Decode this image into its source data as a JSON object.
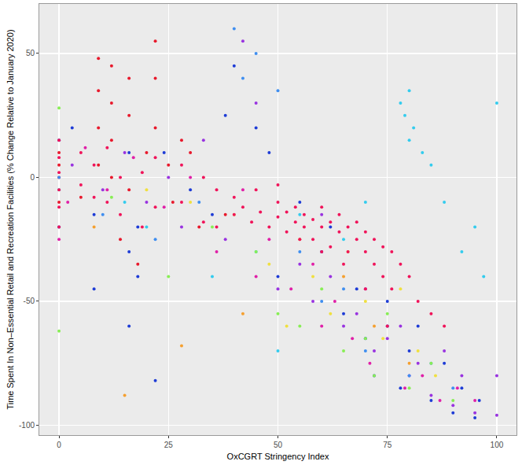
{
  "chart_data": {
    "type": "scatter",
    "x_label": "OxCGRT Stringency Index",
    "y_label": "Time Spent In Non–Essential Retail and Recreation Facilities (% Change Relative to January 2020)",
    "xlim": [
      -4.5,
      104.5
    ],
    "ylim": [
      -104,
      70
    ],
    "xticks": [
      0,
      25,
      50,
      75,
      100
    ],
    "yticks": [
      -100,
      -50,
      0,
      50
    ],
    "grid": true,
    "marker": "circle",
    "series": [
      {
        "color": "#e8192c",
        "x": [
          0,
          0,
          0,
          9,
          9,
          9,
          9,
          12,
          12,
          12,
          12,
          16,
          16,
          16,
          20,
          22,
          22,
          22,
          25,
          28,
          30,
          0,
          5,
          14,
          18,
          26,
          32,
          38
        ],
        "values": [
          10,
          0,
          -10,
          48,
          35,
          20,
          5,
          45,
          30,
          15,
          0,
          40,
          25,
          -5,
          10,
          55,
          40,
          20,
          5,
          15,
          10,
          5,
          -8,
          -25,
          -35,
          -10,
          -20,
          -15
        ]
      },
      {
        "color": "#1e3cd6",
        "x": [
          0,
          0,
          3,
          8,
          8,
          16,
          16,
          16,
          18,
          18,
          22,
          24,
          30,
          35,
          38,
          40,
          45,
          48,
          55,
          60,
          65,
          70,
          72,
          75,
          78,
          80,
          82,
          85,
          88,
          90,
          92,
          95,
          96,
          50,
          62,
          68
        ],
        "values": [
          15,
          -20,
          20,
          -15,
          -45,
          10,
          -30,
          -60,
          -20,
          -40,
          -82,
          10,
          -5,
          -15,
          25,
          45,
          20,
          10,
          -10,
          -30,
          -55,
          -65,
          -80,
          -50,
          -85,
          -70,
          -60,
          -90,
          -75,
          -95,
          -85,
          -97,
          -90,
          -40,
          -20,
          -45
        ]
      },
      {
        "color": "#9933e0",
        "x": [
          3,
          10,
          15,
          20,
          25,
          28,
          33,
          38,
          42,
          45,
          50,
          55,
          58,
          62,
          65,
          68,
          72,
          75,
          78,
          80,
          82,
          85,
          88,
          90,
          92,
          95,
          100,
          100,
          70,
          60
        ],
        "values": [
          5,
          -5,
          10,
          -10,
          0,
          -20,
          15,
          -25,
          55,
          30,
          -45,
          -35,
          -50,
          -40,
          -60,
          -55,
          -70,
          -65,
          -60,
          -80,
          -75,
          -88,
          -70,
          -92,
          -80,
          -95,
          -80,
          -96,
          -45,
          -15
        ]
      },
      {
        "color": "#e020a8",
        "x": [
          2,
          6,
          11,
          17,
          24,
          30,
          36,
          42,
          48,
          53,
          58,
          63,
          67,
          71,
          75,
          79,
          83,
          87,
          91,
          95,
          0,
          45,
          60
        ],
        "values": [
          -10,
          12,
          -5,
          8,
          -12,
          0,
          -30,
          -5,
          -25,
          -45,
          -35,
          -50,
          -65,
          -75,
          -60,
          -85,
          -80,
          -90,
          -85,
          -90,
          -25,
          -40,
          -60
        ]
      },
      {
        "color": "#33ccee",
        "x": [
          0,
          15,
          20,
          35,
          45,
          55,
          65,
          70,
          78,
          79,
          80,
          80,
          81,
          83,
          85,
          88,
          92,
          95,
          97,
          100,
          50
        ],
        "values": [
          -5,
          -10,
          -20,
          -40,
          -30,
          -15,
          -25,
          -10,
          30,
          25,
          35,
          15,
          20,
          10,
          5,
          -10,
          -30,
          -20,
          -40,
          30,
          -70
        ]
      },
      {
        "color": "#3f8ef0",
        "x": [
          0,
          10,
          22,
          32,
          40,
          42,
          45,
          50,
          55,
          60,
          65,
          70,
          75,
          80,
          85,
          90
        ],
        "values": [
          0,
          -15,
          -25,
          -10,
          60,
          40,
          50,
          35,
          -30,
          -50,
          -45,
          -70,
          -60,
          -80,
          -75,
          -85
        ]
      },
      {
        "color": "#88ee55",
        "x": [
          0,
          0,
          12,
          25,
          35,
          45,
          50,
          55,
          60,
          65,
          70,
          72,
          75,
          80,
          85,
          90
        ],
        "values": [
          28,
          -62,
          -8,
          -40,
          -20,
          -30,
          -55,
          -60,
          -45,
          -70,
          -65,
          -80,
          -55,
          -85,
          -75,
          -90
        ]
      },
      {
        "color": "#f0e040",
        "x": [
          20,
          30,
          40,
          48,
          52,
          58,
          62,
          66,
          70,
          74,
          78,
          82,
          86
        ],
        "values": [
          -5,
          -10,
          -15,
          -35,
          -60,
          -40,
          -55,
          -30,
          -50,
          -65,
          -45,
          -70,
          -80
        ]
      },
      {
        "color": "#f5a030",
        "x": [
          8,
          15,
          28,
          42,
          55,
          65,
          72,
          80
        ],
        "values": [
          -20,
          -88,
          -68,
          -55,
          -25,
          -40,
          -60,
          -75
        ]
      },
      {
        "color": "#f0145a",
        "x": [
          0,
          0,
          0,
          0,
          0,
          0,
          5,
          5,
          8,
          8,
          11,
          11,
          14,
          14,
          19,
          19,
          22,
          22,
          28,
          28,
          33,
          33,
          36,
          36,
          40,
          42,
          44,
          46,
          48,
          50,
          50,
          52,
          52,
          54,
          54,
          56,
          56,
          58,
          58,
          60,
          60,
          62,
          62,
          64,
          64,
          66,
          66,
          68,
          68,
          70,
          70,
          72,
          72,
          74,
          74,
          76,
          76,
          78,
          80,
          82,
          85,
          88,
          40,
          45,
          50,
          55,
          60,
          65,
          70,
          75
        ],
        "values": [
          15,
          8,
          2,
          -5,
          -12,
          -20,
          10,
          -3,
          5,
          -8,
          12,
          -10,
          0,
          -15,
          2,
          -20,
          8,
          -12,
          5,
          -10,
          0,
          -18,
          -5,
          -20,
          -15,
          -12,
          -18,
          -14,
          -20,
          -16,
          -10,
          -22,
          -14,
          -18,
          -12,
          -20,
          -15,
          -25,
          -17,
          -12,
          -20,
          -18,
          -28,
          -15,
          -22,
          -20,
          -30,
          -18,
          -25,
          -22,
          -30,
          -25,
          -35,
          -28,
          -40,
          -30,
          -45,
          -35,
          -40,
          -50,
          -55,
          -60,
          -8,
          -5,
          -3,
          -25,
          -30,
          -35,
          -45,
          -60
        ]
      }
    ]
  }
}
